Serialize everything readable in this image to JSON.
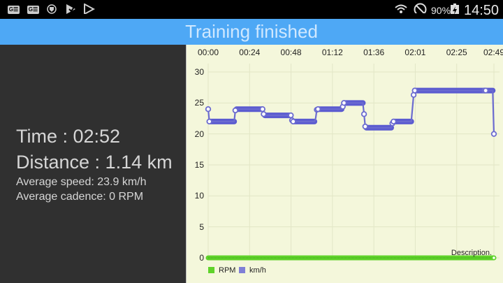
{
  "status_bar": {
    "left_icons": [
      "news-icon",
      "news-icon",
      "shield-icon",
      "play-games-icon",
      "play-store-icon"
    ],
    "right_icons": [
      "wifi-icon",
      "do-not-disturb-icon",
      "battery-charging-icon"
    ],
    "battery": "90%",
    "time": "14:50"
  },
  "app_bar": {
    "title": "Training finished"
  },
  "summary": {
    "time": "Time : 02:52",
    "distance": "Distance : 1.14 km",
    "avg_speed": "Average speed: 23.9 km/h",
    "avg_cadence": "Average cadence:  0 RPM"
  },
  "colors": {
    "speed": "#6b6bd0",
    "rpm": "#5fd32a",
    "chart_bg": "#f4f7db",
    "appbar": "#4ea8f5"
  },
  "chart": {
    "description": "Description.",
    "legend": [
      {
        "label": "RPM",
        "color": "#5fd32a"
      },
      {
        "label": "km/h",
        "color": "#7f7fd6"
      }
    ]
  },
  "chart_data": {
    "type": "line",
    "title": "",
    "xlabel": "",
    "ylabel": "",
    "x_tick_labels": [
      "00:00",
      "00:24",
      "00:48",
      "01:12",
      "01:36",
      "02:01",
      "02:25",
      "02:49"
    ],
    "y_tick_labels": [
      "0",
      "5",
      "10",
      "15",
      "20",
      "25",
      "30"
    ],
    "ylim": [
      0,
      30
    ],
    "grid": true,
    "legend_position": "bottom-left",
    "series": [
      {
        "name": "km/h",
        "points_sec": [
          [
            0,
            24
          ],
          [
            1,
            22
          ],
          [
            22,
            22
          ],
          [
            23,
            23.8
          ],
          [
            24,
            24
          ],
          [
            46,
            24
          ],
          [
            47,
            23.2
          ],
          [
            48,
            23
          ],
          [
            70,
            23
          ],
          [
            71,
            22.2
          ],
          [
            72,
            22
          ],
          [
            90,
            22
          ],
          [
            91,
            22.5
          ],
          [
            92,
            23.9
          ],
          [
            93,
            24
          ],
          [
            113,
            24
          ],
          [
            114,
            24.4
          ],
          [
            115,
            25
          ],
          [
            131,
            25
          ],
          [
            132,
            23.2
          ],
          [
            133,
            21.2
          ],
          [
            134,
            21
          ],
          [
            155,
            21
          ],
          [
            156,
            21.7
          ],
          [
            157,
            22
          ],
          [
            172,
            22
          ],
          [
            174,
            26.3
          ],
          [
            175,
            27
          ],
          [
            234,
            27
          ],
          [
            235,
            27
          ],
          [
            241,
            27
          ],
          [
            242,
            20
          ]
        ],
        "x_max_sec": 242
      },
      {
        "name": "RPM",
        "constant": 0
      }
    ]
  }
}
